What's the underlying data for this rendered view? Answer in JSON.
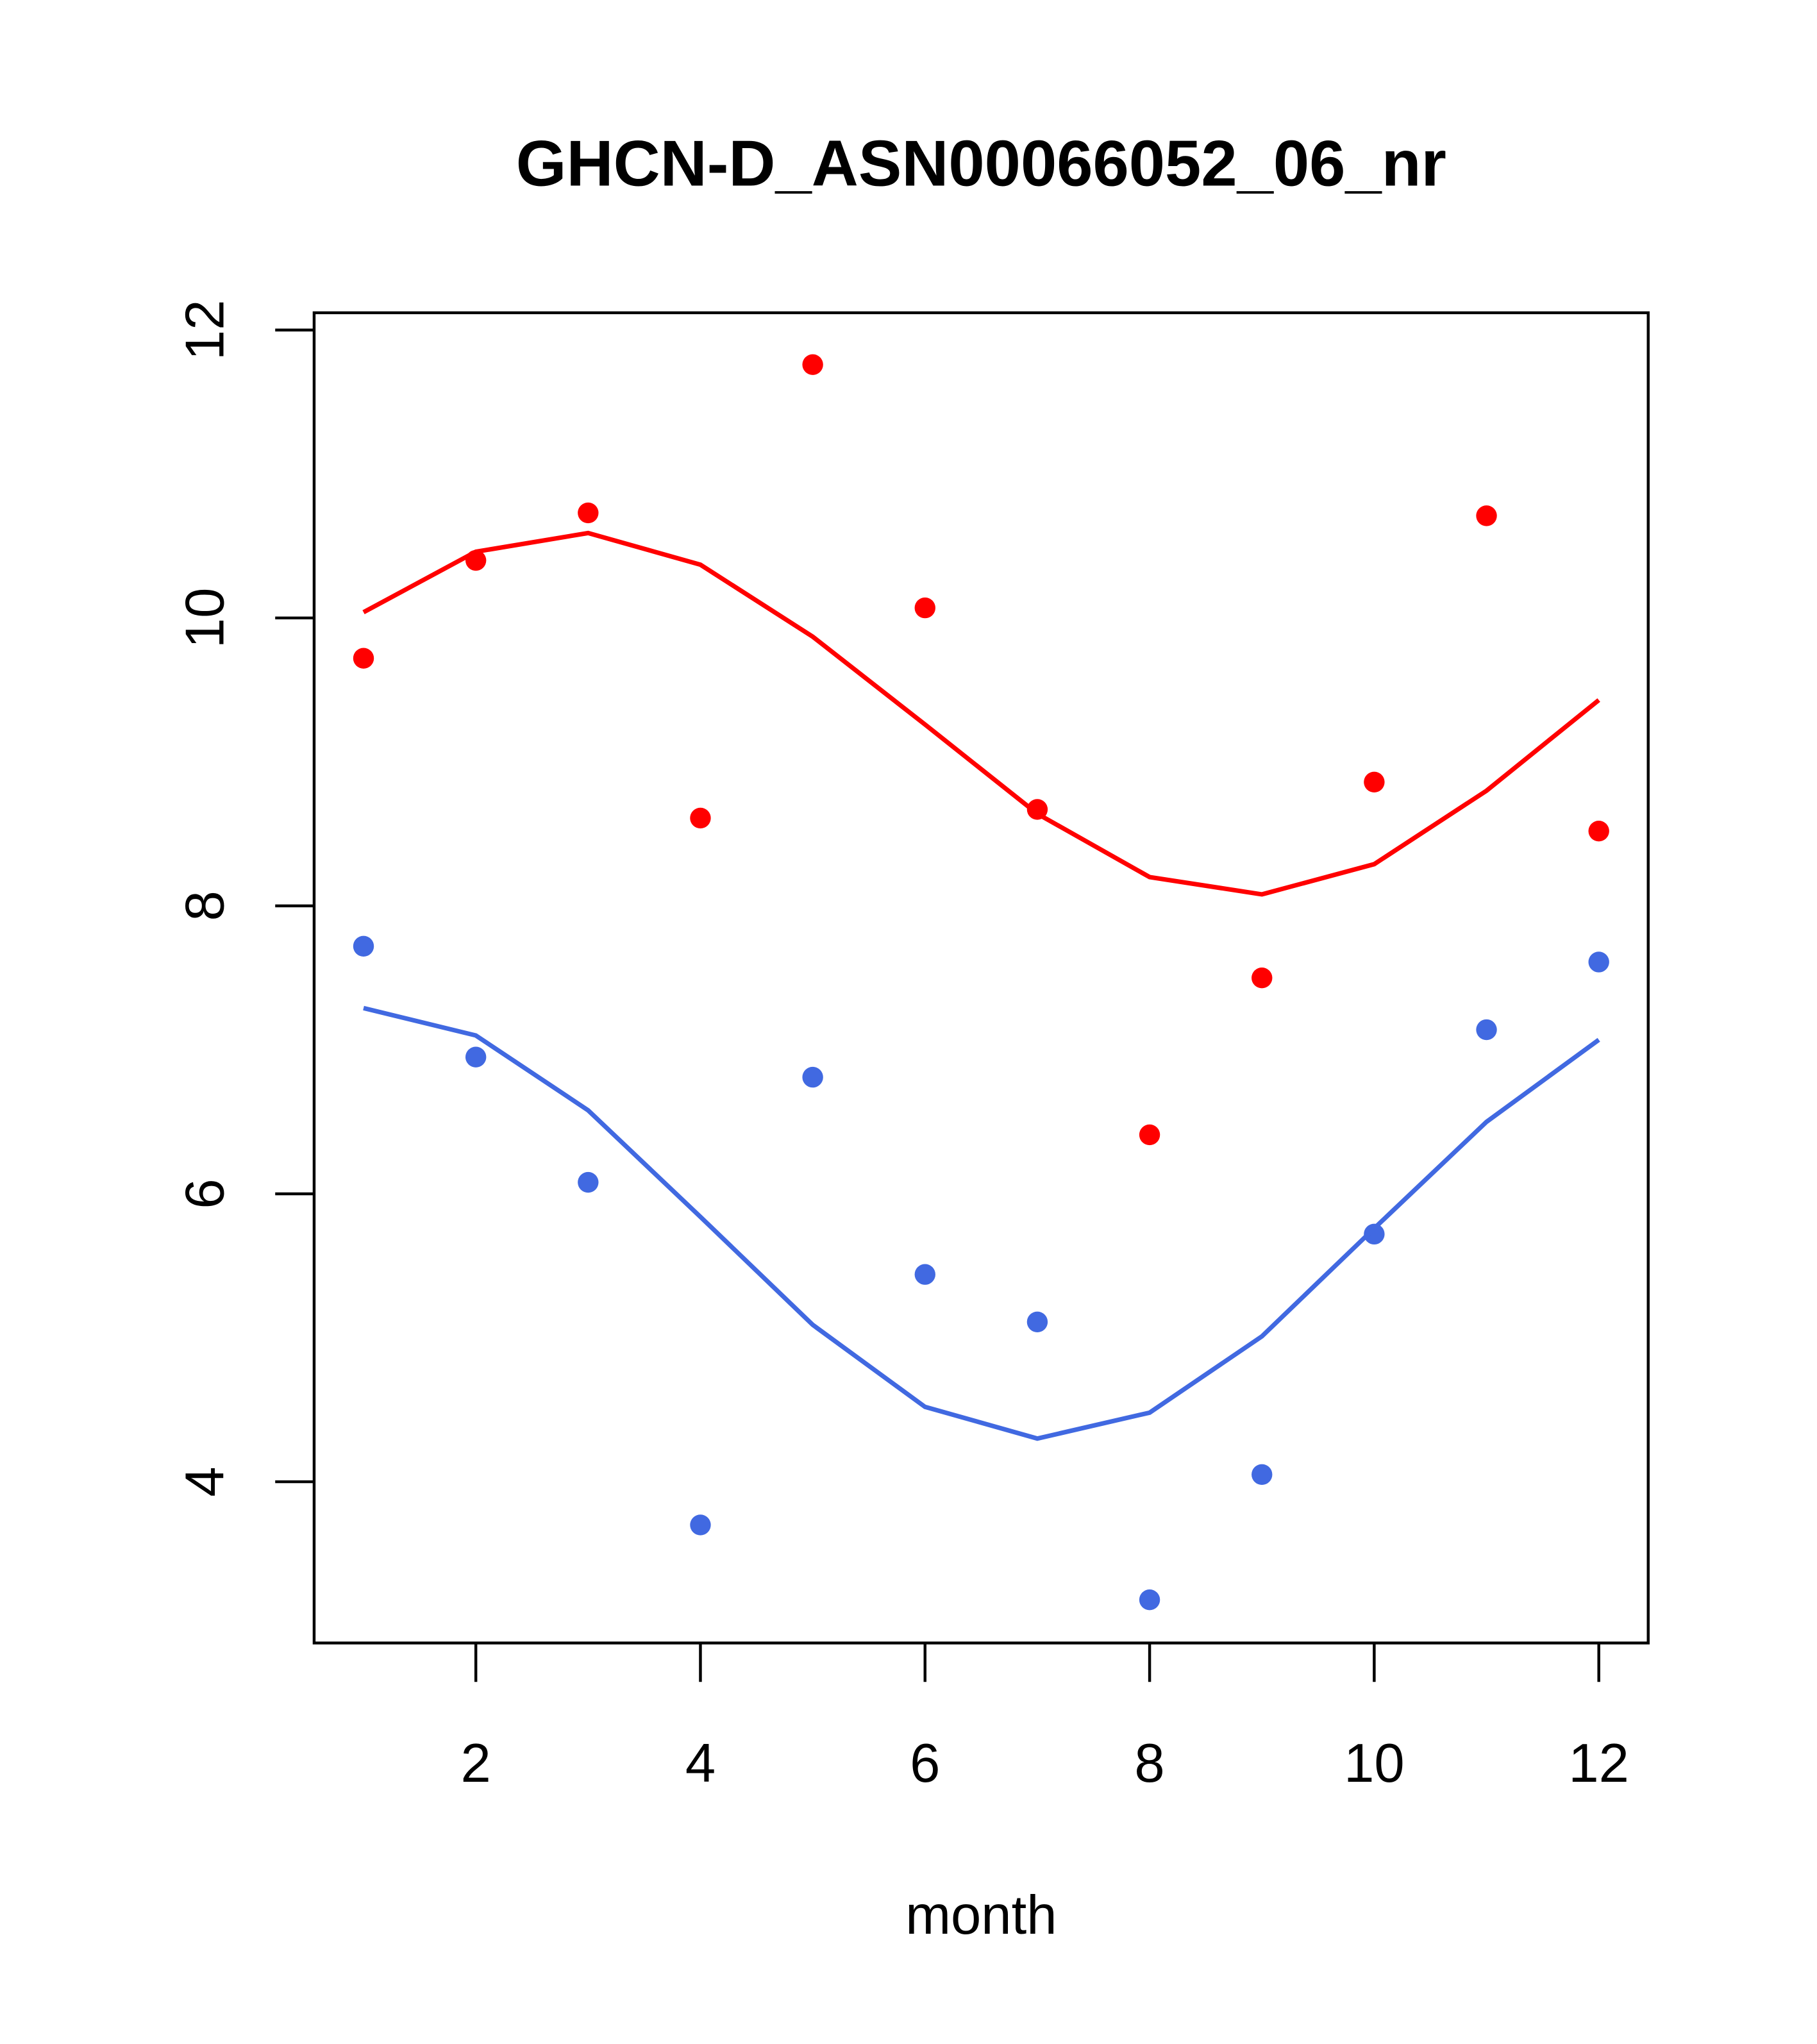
{
  "chart_data": {
    "type": "scatter",
    "title": "GHCN-D_ASN00066052_06_nr",
    "xlabel": "month",
    "ylabel": "",
    "xlim": [
      0.56,
      12.44
    ],
    "ylim": [
      2.88,
      12.12
    ],
    "xticks": [
      2,
      4,
      6,
      8,
      10,
      12
    ],
    "yticks": [
      4,
      6,
      8,
      10,
      12
    ],
    "grid": false,
    "x": [
      1,
      2,
      3,
      4,
      5,
      6,
      7,
      8,
      9,
      10,
      11,
      12
    ],
    "series": [
      {
        "name": "red points",
        "kind": "points",
        "color": "#ff0000",
        "values": [
          9.72,
          10.4,
          10.73,
          8.61,
          11.76,
          10.07,
          8.67,
          6.41,
          7.5,
          8.86,
          10.71,
          8.52
        ]
      },
      {
        "name": "red fit",
        "kind": "line",
        "color": "#ff0000",
        "values": [
          10.04,
          10.46,
          10.59,
          10.37,
          9.87,
          9.26,
          8.64,
          8.2,
          8.08,
          8.29,
          8.8,
          9.43
        ]
      },
      {
        "name": "blue points",
        "kind": "points",
        "color": "#4169e1",
        "values": [
          7.72,
          6.95,
          6.08,
          3.7,
          6.81,
          5.44,
          5.11,
          3.18,
          4.05,
          5.72,
          7.14,
          7.61
        ]
      },
      {
        "name": "blue fit",
        "kind": "line",
        "color": "#4169e1",
        "values": [
          7.29,
          7.1,
          6.58,
          5.84,
          5.09,
          4.52,
          4.3,
          4.48,
          5.01,
          5.76,
          6.5,
          7.07
        ]
      }
    ]
  }
}
